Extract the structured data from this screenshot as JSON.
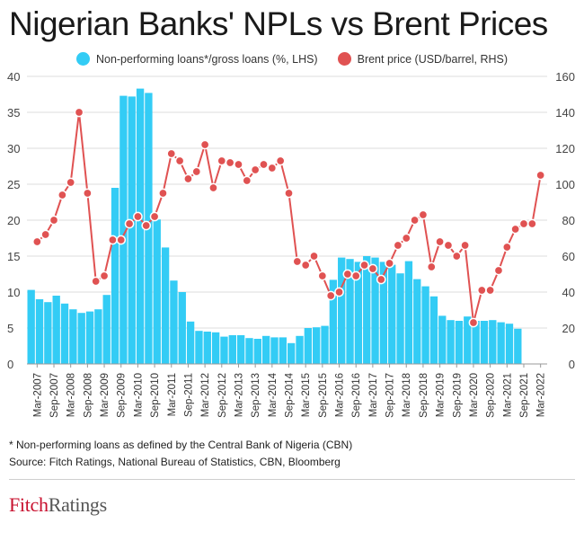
{
  "title": "Nigerian Banks' NPLs vs Brent Prices",
  "legend": {
    "npl_label": "Non-performing loans*/gross loans (%, LHS)",
    "brent_label": "Brent price (USD/barrel, RHS)"
  },
  "colors": {
    "npl": "#33ccf5",
    "brent": "#e05252"
  },
  "footnotes": {
    "note": "* Non-performing loans as defined by the Central Bank of Nigeria (CBN)",
    "source": "Source: Fitch Ratings, National Bureau of Statistics, CBN, Bloomberg"
  },
  "logo": {
    "fitch": "Fitch",
    "ratings": "Ratings"
  },
  "chart_data": {
    "type": "bar",
    "x_tick_labels": [
      "Mar-2007",
      "Sep-2007",
      "Mar-2008",
      "Sep-2008",
      "Mar-2009",
      "Sep-2009",
      "Mar-2010",
      "Sep-2010",
      "Mar-2011",
      "Sep-2011",
      "Mar-2012",
      "Sep-2012",
      "Mar-2013",
      "Sep-2013",
      "Mar-2014",
      "Sep-2014",
      "Mar-2015",
      "Sep-2015",
      "Mar-2016",
      "Sep-2016",
      "Mar-2017",
      "Sep-2017",
      "Mar-2018",
      "Sep-2018",
      "Mar-2019",
      "Sep-2019",
      "Mar-2020",
      "Sep-2020",
      "Mar-2021",
      "Sep-2021",
      "Mar-2022"
    ],
    "y_left": {
      "ylim": [
        0,
        40
      ],
      "ticks": [
        0,
        5,
        10,
        15,
        20,
        25,
        30,
        35,
        40
      ]
    },
    "y_right": {
      "ylim": [
        0,
        160
      ],
      "ticks": [
        0,
        20,
        40,
        60,
        80,
        100,
        120,
        140,
        160
      ]
    },
    "grid": true,
    "legend_position": "top",
    "series": [
      {
        "name": "Non-performing loans*/gross loans (%, LHS)",
        "kind": "bar",
        "axis": "left",
        "values": [
          10.3,
          9.0,
          8.6,
          9.5,
          8.4,
          7.6,
          7.1,
          7.3,
          7.6,
          9.6,
          24.5,
          37.3,
          37.2,
          38.3,
          37.7,
          20.1,
          16.2,
          11.6,
          10.0,
          5.9,
          4.6,
          4.5,
          4.4,
          3.8,
          4.0,
          4.0,
          3.6,
          3.5,
          3.9,
          3.7,
          3.7,
          2.9,
          3.9,
          5.0,
          5.1,
          5.3,
          11.7,
          14.8,
          14.6,
          14.2,
          15.0,
          14.8,
          14.2,
          13.8,
          12.6,
          14.3,
          11.8,
          10.8,
          9.4,
          6.7,
          6.1,
          6.0,
          6.6,
          6.0,
          6.0,
          6.1,
          5.8,
          5.6,
          4.9
        ]
      },
      {
        "name": "Brent price (USD/barrel, RHS)",
        "kind": "line",
        "axis": "right",
        "values": [
          68,
          72,
          80,
          94,
          101,
          140,
          95,
          46,
          49,
          69,
          69,
          78,
          82,
          77,
          82,
          95,
          117,
          113,
          103,
          107,
          122,
          98,
          113,
          112,
          111,
          102,
          108,
          111,
          109,
          113,
          95,
          57,
          55,
          60,
          49,
          38,
          40,
          50,
          49,
          55,
          53,
          47,
          56,
          66,
          70,
          80,
          83,
          54,
          68,
          66,
          60,
          66,
          23,
          41,
          41,
          52,
          65,
          75,
          78,
          78,
          105
        ]
      }
    ]
  }
}
